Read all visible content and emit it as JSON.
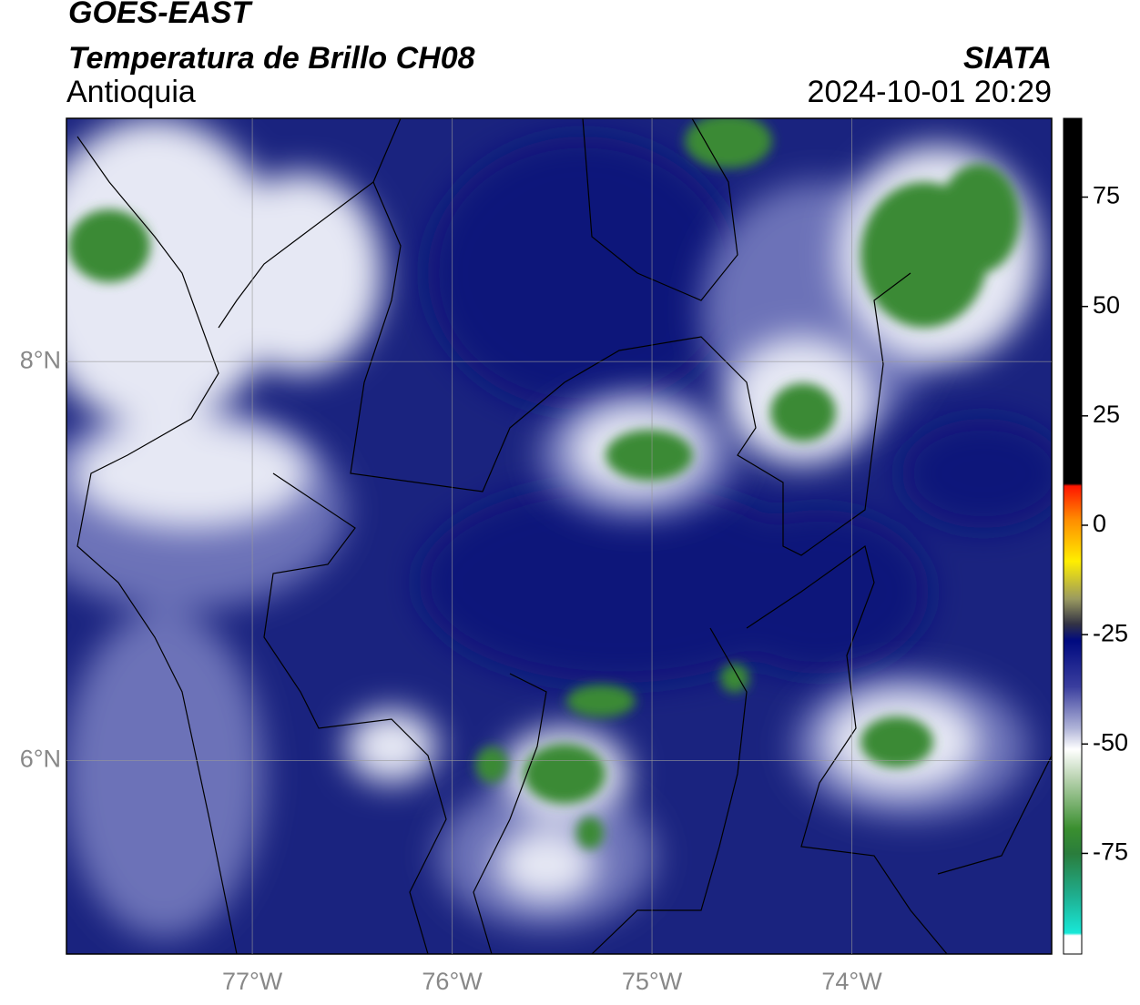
{
  "map": {
    "title": "GOES-EAST",
    "subtitle": "Temperatura de Brillo CH08",
    "region": "Antioquia",
    "source": "SIATA",
    "datetime": "2024-10-01 20:29",
    "xlim": [
      -77.93,
      -73
    ],
    "ylim": [
      5.03,
      9.22
    ],
    "xticks": [
      {
        "value": -77,
        "label": "77°W"
      },
      {
        "value": -76,
        "label": "76°W"
      },
      {
        "value": -75,
        "label": "75°W"
      },
      {
        "value": -74,
        "label": "74°W"
      }
    ],
    "yticks": [
      {
        "value": 6,
        "label": "6°N"
      },
      {
        "value": 8,
        "label": "8°N"
      }
    ],
    "grid": true,
    "colorbar": {
      "lim": [
        -98,
        93
      ],
      "ticks": [
        -75,
        -50,
        -25,
        0,
        25,
        50,
        75
      ]
    }
  }
}
